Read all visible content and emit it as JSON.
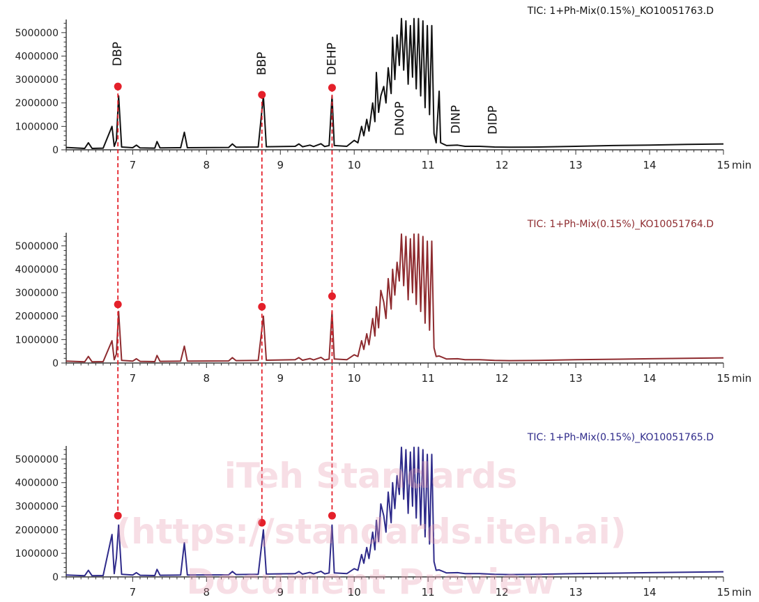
{
  "colors": {
    "trace_1": "#111111",
    "trace_2": "#8e2b2f",
    "trace_3": "#2e2a8a",
    "marker": "#e4202a",
    "axis": "#333333",
    "watermark": "#e8a0b4"
  },
  "watermark": {
    "line_1": "iTeh Standards",
    "line_2": "(https://standards.iteh.ai)",
    "line_3": "Document Preview"
  },
  "chart_data": {
    "type": "line",
    "x_unit_label": "min",
    "x_range": [
      6.1,
      15.0
    ],
    "y_range": [
      0,
      5500000
    ],
    "x_ticks": [
      7,
      8,
      9,
      10,
      11,
      12,
      13,
      14,
      15
    ],
    "y_ticks": [
      0,
      1000000,
      2000000,
      3000000,
      4000000,
      5000000
    ],
    "grid": false,
    "compounds": [
      {
        "name": "DBP",
        "rt": 6.8
      },
      {
        "name": "BBP",
        "rt": 8.75
      },
      {
        "name": "DEHP",
        "rt": 9.7
      },
      {
        "name": "DNOP",
        "rt": 10.62
      },
      {
        "name": "DINP",
        "rt": 11.38
      },
      {
        "name": "DIDP",
        "rt": 11.88
      }
    ],
    "series": [
      {
        "name": "TIC: 1+Ph-Mix(0.15%)_KO10051763.D",
        "color_key": "trace_1",
        "markers": [
          [
            6.8,
            2700000
          ],
          [
            8.75,
            2350000
          ],
          [
            9.7,
            2650000
          ]
        ],
        "points": [
          [
            6.1,
            100000
          ],
          [
            6.35,
            60000
          ],
          [
            6.4,
            300000
          ],
          [
            6.45,
            60000
          ],
          [
            6.6,
            70000
          ],
          [
            6.72,
            1000000
          ],
          [
            6.75,
            150000
          ],
          [
            6.78,
            400000
          ],
          [
            6.81,
            2300000
          ],
          [
            6.85,
            120000
          ],
          [
            7.0,
            90000
          ],
          [
            7.05,
            200000
          ],
          [
            7.1,
            80000
          ],
          [
            7.3,
            70000
          ],
          [
            7.33,
            350000
          ],
          [
            7.37,
            80000
          ],
          [
            7.65,
            90000
          ],
          [
            7.7,
            750000
          ],
          [
            7.74,
            90000
          ],
          [
            8.3,
            100000
          ],
          [
            8.35,
            250000
          ],
          [
            8.4,
            110000
          ],
          [
            8.7,
            120000
          ],
          [
            8.77,
            2300000
          ],
          [
            8.81,
            130000
          ],
          [
            9.2,
            150000
          ],
          [
            9.25,
            250000
          ],
          [
            9.3,
            130000
          ],
          [
            9.4,
            200000
          ],
          [
            9.45,
            140000
          ],
          [
            9.55,
            260000
          ],
          [
            9.6,
            140000
          ],
          [
            9.66,
            180000
          ],
          [
            9.7,
            2300000
          ],
          [
            9.73,
            180000
          ],
          [
            9.9,
            150000
          ],
          [
            10.0,
            400000
          ],
          [
            10.05,
            300000
          ],
          [
            10.1,
            1000000
          ],
          [
            10.13,
            600000
          ],
          [
            10.17,
            1300000
          ],
          [
            10.2,
            800000
          ],
          [
            10.25,
            2000000
          ],
          [
            10.28,
            1200000
          ],
          [
            10.3,
            3300000
          ],
          [
            10.33,
            1600000
          ],
          [
            10.36,
            2300000
          ],
          [
            10.4,
            2700000
          ],
          [
            10.43,
            2000000
          ],
          [
            10.46,
            3500000
          ],
          [
            10.5,
            2400000
          ],
          [
            10.52,
            4800000
          ],
          [
            10.55,
            3000000
          ],
          [
            10.58,
            4900000
          ],
          [
            10.61,
            3600000
          ],
          [
            10.64,
            5600000
          ],
          [
            10.67,
            3400000
          ],
          [
            10.7,
            5500000
          ],
          [
            10.73,
            2800000
          ],
          [
            10.76,
            5300000
          ],
          [
            10.79,
            3100000
          ],
          [
            10.81,
            5600000
          ],
          [
            10.84,
            2600000
          ],
          [
            10.87,
            5600000
          ],
          [
            10.9,
            2300000
          ],
          [
            10.93,
            5500000
          ],
          [
            10.96,
            1800000
          ],
          [
            10.99,
            5300000
          ],
          [
            11.02,
            1500000
          ],
          [
            11.05,
            5300000
          ],
          [
            11.08,
            700000
          ],
          [
            11.11,
            300000
          ],
          [
            11.15,
            2500000
          ],
          [
            11.17,
            300000
          ],
          [
            11.25,
            180000
          ],
          [
            11.4,
            200000
          ],
          [
            11.5,
            150000
          ],
          [
            11.7,
            150000
          ],
          [
            11.9,
            120000
          ],
          [
            12.1,
            110000
          ],
          [
            12.5,
            120000
          ],
          [
            13.0,
            150000
          ],
          [
            13.5,
            180000
          ],
          [
            14.0,
            200000
          ],
          [
            14.5,
            230000
          ],
          [
            15.0,
            250000
          ]
        ]
      },
      {
        "name": "TIC: 1+Ph-Mix(0.15%)_KO10051764.D",
        "color_key": "trace_2",
        "markers": [
          [
            6.8,
            2500000
          ],
          [
            8.75,
            2400000
          ],
          [
            9.7,
            2850000
          ]
        ],
        "points": [
          [
            6.1,
            80000
          ],
          [
            6.35,
            50000
          ],
          [
            6.4,
            280000
          ],
          [
            6.45,
            50000
          ],
          [
            6.6,
            60000
          ],
          [
            6.72,
            950000
          ],
          [
            6.75,
            140000
          ],
          [
            6.78,
            380000
          ],
          [
            6.81,
            2200000
          ],
          [
            6.85,
            110000
          ],
          [
            7.0,
            80000
          ],
          [
            7.05,
            180000
          ],
          [
            7.1,
            70000
          ],
          [
            7.3,
            60000
          ],
          [
            7.33,
            320000
          ],
          [
            7.37,
            70000
          ],
          [
            7.65,
            80000
          ],
          [
            7.7,
            720000
          ],
          [
            7.74,
            80000
          ],
          [
            8.3,
            90000
          ],
          [
            8.35,
            230000
          ],
          [
            8.4,
            100000
          ],
          [
            8.7,
            110000
          ],
          [
            8.77,
            2000000
          ],
          [
            8.81,
            120000
          ],
          [
            9.2,
            140000
          ],
          [
            9.25,
            230000
          ],
          [
            9.3,
            120000
          ],
          [
            9.4,
            190000
          ],
          [
            9.45,
            130000
          ],
          [
            9.55,
            240000
          ],
          [
            9.6,
            130000
          ],
          [
            9.66,
            170000
          ],
          [
            9.7,
            2200000
          ],
          [
            9.73,
            170000
          ],
          [
            9.9,
            140000
          ],
          [
            10.0,
            350000
          ],
          [
            10.05,
            280000
          ],
          [
            10.1,
            950000
          ],
          [
            10.13,
            580000
          ],
          [
            10.17,
            1250000
          ],
          [
            10.2,
            780000
          ],
          [
            10.25,
            1900000
          ],
          [
            10.28,
            1150000
          ],
          [
            10.3,
            2400000
          ],
          [
            10.33,
            1500000
          ],
          [
            10.36,
            3100000
          ],
          [
            10.4,
            2600000
          ],
          [
            10.43,
            1900000
          ],
          [
            10.46,
            3600000
          ],
          [
            10.5,
            2300000
          ],
          [
            10.52,
            4000000
          ],
          [
            10.55,
            2900000
          ],
          [
            10.58,
            4300000
          ],
          [
            10.61,
            3500000
          ],
          [
            10.64,
            5500000
          ],
          [
            10.67,
            3300000
          ],
          [
            10.7,
            5400000
          ],
          [
            10.73,
            2700000
          ],
          [
            10.76,
            5300000
          ],
          [
            10.79,
            3000000
          ],
          [
            10.81,
            5500000
          ],
          [
            10.84,
            2500000
          ],
          [
            10.87,
            5500000
          ],
          [
            10.9,
            2200000
          ],
          [
            10.93,
            5400000
          ],
          [
            10.96,
            1700000
          ],
          [
            10.99,
            5200000
          ],
          [
            11.02,
            1400000
          ],
          [
            11.05,
            5200000
          ],
          [
            11.08,
            650000
          ],
          [
            11.11,
            280000
          ],
          [
            11.15,
            300000
          ],
          [
            11.25,
            170000
          ],
          [
            11.4,
            180000
          ],
          [
            11.5,
            140000
          ],
          [
            11.7,
            140000
          ],
          [
            11.9,
            110000
          ],
          [
            12.1,
            100000
          ],
          [
            12.5,
            110000
          ],
          [
            13.0,
            140000
          ],
          [
            13.5,
            160000
          ],
          [
            14.0,
            180000
          ],
          [
            14.5,
            200000
          ],
          [
            15.0,
            220000
          ]
        ]
      },
      {
        "name": "TIC: 1+Ph-Mix(0.15%)_KO10051765.D",
        "color_key": "trace_3",
        "markers": [
          [
            6.8,
            2600000
          ],
          [
            8.75,
            2300000
          ],
          [
            9.7,
            2600000
          ]
        ],
        "points": [
          [
            6.1,
            80000
          ],
          [
            6.35,
            50000
          ],
          [
            6.4,
            280000
          ],
          [
            6.45,
            50000
          ],
          [
            6.6,
            60000
          ],
          [
            6.72,
            1800000
          ],
          [
            6.75,
            140000
          ],
          [
            6.78,
            800000
          ],
          [
            6.81,
            2200000
          ],
          [
            6.85,
            110000
          ],
          [
            7.0,
            80000
          ],
          [
            7.05,
            180000
          ],
          [
            7.1,
            70000
          ],
          [
            7.3,
            60000
          ],
          [
            7.33,
            320000
          ],
          [
            7.37,
            70000
          ],
          [
            7.65,
            80000
          ],
          [
            7.7,
            1450000
          ],
          [
            7.74,
            80000
          ],
          [
            8.3,
            90000
          ],
          [
            8.35,
            230000
          ],
          [
            8.4,
            100000
          ],
          [
            8.7,
            110000
          ],
          [
            8.77,
            2000000
          ],
          [
            8.81,
            120000
          ],
          [
            9.2,
            140000
          ],
          [
            9.25,
            230000
          ],
          [
            9.3,
            120000
          ],
          [
            9.4,
            190000
          ],
          [
            9.45,
            130000
          ],
          [
            9.55,
            240000
          ],
          [
            9.6,
            130000
          ],
          [
            9.66,
            170000
          ],
          [
            9.7,
            2200000
          ],
          [
            9.73,
            170000
          ],
          [
            9.9,
            140000
          ],
          [
            10.0,
            350000
          ],
          [
            10.05,
            280000
          ],
          [
            10.1,
            950000
          ],
          [
            10.13,
            580000
          ],
          [
            10.17,
            1250000
          ],
          [
            10.2,
            780000
          ],
          [
            10.25,
            1900000
          ],
          [
            10.28,
            1150000
          ],
          [
            10.3,
            2400000
          ],
          [
            10.33,
            1500000
          ],
          [
            10.36,
            3100000
          ],
          [
            10.4,
            2600000
          ],
          [
            10.43,
            1900000
          ],
          [
            10.46,
            3600000
          ],
          [
            10.5,
            2300000
          ],
          [
            10.52,
            4000000
          ],
          [
            10.55,
            2900000
          ],
          [
            10.58,
            4300000
          ],
          [
            10.61,
            3500000
          ],
          [
            10.64,
            5500000
          ],
          [
            10.67,
            3300000
          ],
          [
            10.7,
            5400000
          ],
          [
            10.73,
            2700000
          ],
          [
            10.76,
            5300000
          ],
          [
            10.79,
            3000000
          ],
          [
            10.81,
            5500000
          ],
          [
            10.84,
            2500000
          ],
          [
            10.87,
            5500000
          ],
          [
            10.9,
            2200000
          ],
          [
            10.93,
            5400000
          ],
          [
            10.96,
            1700000
          ],
          [
            10.99,
            5200000
          ],
          [
            11.02,
            1400000
          ],
          [
            11.05,
            5200000
          ],
          [
            11.08,
            650000
          ],
          [
            11.11,
            280000
          ],
          [
            11.15,
            300000
          ],
          [
            11.25,
            170000
          ],
          [
            11.4,
            180000
          ],
          [
            11.5,
            140000
          ],
          [
            11.7,
            140000
          ],
          [
            11.9,
            110000
          ],
          [
            12.1,
            100000
          ],
          [
            12.5,
            110000
          ],
          [
            13.0,
            140000
          ],
          [
            13.5,
            160000
          ],
          [
            14.0,
            180000
          ],
          [
            14.5,
            200000
          ],
          [
            15.0,
            220000
          ]
        ]
      }
    ]
  }
}
